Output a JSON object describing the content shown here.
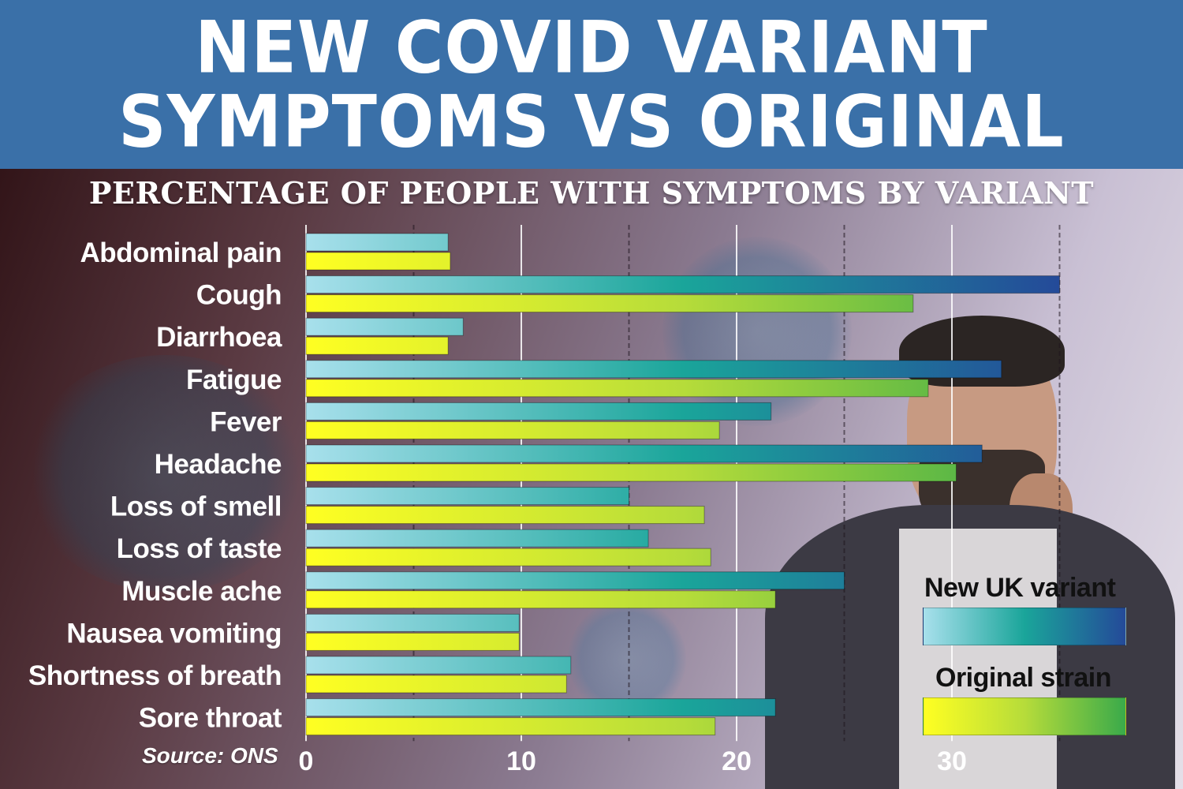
{
  "banner": {
    "line1": "NEW COVID VARIANT",
    "line2": "SYMPTOMS VS ORIGINAL"
  },
  "source": "Source: ONS",
  "colors": {
    "banner": "#3a70a8",
    "new_variant_start": "#a8e0ec",
    "new_variant_mid": "#1aa59a",
    "new_variant_end": "#244a99",
    "original_start": "#ffff22",
    "original_mid": "#b6dc3a",
    "original_end": "#3aaa4a"
  },
  "chart_data": {
    "type": "bar",
    "orientation": "horizontal",
    "title": "PERCENTAGE OF PEOPLE WITH SYMPTOMS BY VARIANT",
    "categories": [
      "Abdominal pain",
      "Cough",
      "Diarrhoea",
      "Fatigue",
      "Fever",
      "Headache",
      "Loss of smell",
      "Loss of taste",
      "Muscle ache",
      "Nausea vomiting",
      "Shortness of breath",
      "Sore throat"
    ],
    "series": [
      {
        "name": "New UK variant",
        "values": [
          6.6,
          35.0,
          7.3,
          32.3,
          21.6,
          31.4,
          15.0,
          15.9,
          25.0,
          9.9,
          12.3,
          21.8
        ]
      },
      {
        "name": "Original strain",
        "values": [
          6.7,
          28.2,
          6.6,
          28.9,
          19.2,
          30.2,
          18.5,
          18.8,
          21.8,
          9.9,
          12.1,
          19.0
        ]
      }
    ],
    "xticks": [
      0,
      10,
      20,
      30
    ],
    "xlim": [
      0,
      35
    ],
    "grid": true,
    "legend_position": "bottom-right"
  }
}
